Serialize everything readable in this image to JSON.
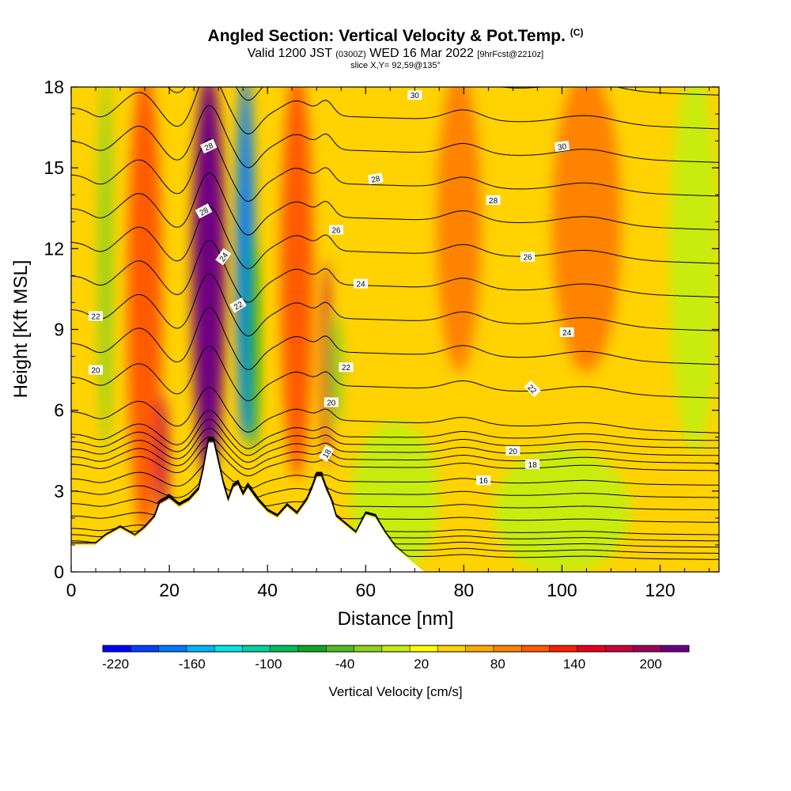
{
  "title": {
    "main": "Angled Section: Vertical Velocity & Pot.Temp.",
    "units": "(C)",
    "valid_prefix": "Valid 1200 JST",
    "valid_utc": "(0300Z)",
    "valid_date": "WED 16 Mar 2022",
    "forecast": "[9hrFcst@2210z]",
    "slice": "slice X,Y= 92,59@135°"
  },
  "colors": {
    "palette": [
      "#0000ff",
      "#0040ff",
      "#0078ff",
      "#00b4ff",
      "#00e6e6",
      "#00d2a0",
      "#00be5a",
      "#10a820",
      "#50be20",
      "#8cd21e",
      "#c8ec10",
      "#ffff00",
      "#ffd200",
      "#ffaa00",
      "#ff8200",
      "#ff5a00",
      "#ff1e00",
      "#e6001e",
      "#c8003c",
      "#a0005a",
      "#6e0082"
    ],
    "terrain": "#ffffff",
    "contour": "#000000"
  },
  "chart_data": {
    "type": "heatmap",
    "xlabel": "Distance [nm]",
    "ylabel": "Height [Kft MSL]",
    "xlim": [
      0,
      132
    ],
    "ylim": [
      0,
      18
    ],
    "x_ticks": [
      0,
      20,
      40,
      60,
      80,
      100,
      120
    ],
    "y_ticks": [
      0,
      3,
      6,
      9,
      12,
      15,
      18
    ],
    "colorbar": {
      "label": "Vertical Velocity [cm/s]",
      "ticks": [
        -220,
        -160,
        -100,
        -40,
        20,
        80,
        140,
        200
      ],
      "min": -230,
      "max": 230,
      "step": 20
    },
    "background_velocity": 10,
    "velocity_bands": [
      {
        "x": 7,
        "width": 1.3,
        "bottom": 5,
        "top": 18,
        "value": -40
      },
      {
        "x": 15,
        "width": 3.5,
        "bottom": 2,
        "top": 18,
        "value": 80
      },
      {
        "x": 18.5,
        "width": 1.2,
        "bottom": 2.5,
        "top": 6,
        "value": 140
      },
      {
        "x": 28,
        "width": 3.3,
        "bottom": 4,
        "top": 18,
        "value": 180
      },
      {
        "x": 35.5,
        "width": 1.8,
        "bottom": 5.5,
        "top": 18,
        "value": -180
      },
      {
        "x": 37,
        "width": 1.2,
        "bottom": 5,
        "top": 12,
        "value": -90
      },
      {
        "x": 46,
        "width": 3.3,
        "bottom": 4,
        "top": 18,
        "value": 80
      },
      {
        "x": 52,
        "width": 0.8,
        "bottom": 4.5,
        "top": 11,
        "value": 140
      },
      {
        "x": 54,
        "width": 1.2,
        "bottom": 6,
        "top": 9,
        "value": -40
      },
      {
        "x": 79,
        "width": 4.5,
        "bottom": 8,
        "top": 18,
        "value": 60
      },
      {
        "x": 105,
        "width": 7,
        "bottom": 8,
        "top": 18,
        "value": 60
      },
      {
        "x": 66,
        "width": 9,
        "bottom": 0.5,
        "top": 5,
        "value": -30
      },
      {
        "x": 100,
        "width": 14,
        "bottom": 0.5,
        "top": 4,
        "value": -30
      },
      {
        "x": 121,
        "width": 2,
        "bottom": 0,
        "top": 4,
        "value": 20
      },
      {
        "x": 127,
        "width": 5,
        "bottom": 5,
        "top": 18,
        "value": -30
      }
    ],
    "terrain_profile": {
      "x": [
        0,
        5,
        7,
        10,
        13,
        15,
        17,
        18,
        20,
        22,
        24,
        26,
        27,
        28,
        29,
        30,
        31,
        32,
        33,
        34,
        35,
        36,
        38,
        40,
        42,
        44,
        46,
        48,
        49,
        50,
        51,
        52,
        53,
        54,
        56,
        58,
        60,
        62,
        64,
        66,
        68,
        70,
        72,
        132
      ],
      "height": [
        1.0,
        1.0,
        1.3,
        1.6,
        1.3,
        1.6,
        2.0,
        2.5,
        2.7,
        2.4,
        2.6,
        3.0,
        3.8,
        4.8,
        4.8,
        4.0,
        3.2,
        2.6,
        3.1,
        3.2,
        2.8,
        3.1,
        2.6,
        2.2,
        2.0,
        2.4,
        2.1,
        2.6,
        3.0,
        3.5,
        3.5,
        3.0,
        2.6,
        2.0,
        1.7,
        1.4,
        2.1,
        2.0,
        1.4,
        0.9,
        0.6,
        0.3,
        0.0,
        0.0
      ]
    },
    "potential_temperature": {
      "levels": [
        2,
        3,
        4,
        5,
        6,
        8,
        10,
        12,
        14,
        16,
        17,
        18,
        19,
        20,
        21,
        22,
        23,
        24,
        25,
        26,
        27,
        28,
        29,
        30,
        31
      ],
      "labels": [
        {
          "text": "30",
          "x": 70.0,
          "y": 17.7,
          "angle": 0
        },
        {
          "text": "30",
          "x": 100.0,
          "y": 15.8,
          "angle": -8
        },
        {
          "text": "28",
          "x": 28.0,
          "y": 15.8,
          "angle": -25
        },
        {
          "text": "28",
          "x": 62.0,
          "y": 14.6,
          "angle": -10
        },
        {
          "text": "28",
          "x": 27.0,
          "y": 13.4,
          "angle": -28
        },
        {
          "text": "28",
          "x": 86.0,
          "y": 13.8,
          "angle": 0
        },
        {
          "text": "26",
          "x": 54.0,
          "y": 12.7,
          "angle": 0
        },
        {
          "text": "26",
          "x": 93.0,
          "y": 11.7,
          "angle": 0
        },
        {
          "text": "24",
          "x": 31.0,
          "y": 11.7,
          "angle": -55
        },
        {
          "text": "24",
          "x": 59.0,
          "y": 10.7,
          "angle": 0
        },
        {
          "text": "24",
          "x": 101.0,
          "y": 8.9,
          "angle": 0
        },
        {
          "text": "22",
          "x": 5.0,
          "y": 9.5,
          "angle": 0
        },
        {
          "text": "22",
          "x": 34.0,
          "y": 9.9,
          "angle": -30
        },
        {
          "text": "22",
          "x": 56.0,
          "y": 7.6,
          "angle": 0
        },
        {
          "text": "22",
          "x": 94.0,
          "y": 6.8,
          "angle": 45
        },
        {
          "text": "20",
          "x": 5.0,
          "y": 7.5,
          "angle": 0
        },
        {
          "text": "20",
          "x": 53.0,
          "y": 6.3,
          "angle": 0
        },
        {
          "text": "20",
          "x": 90.0,
          "y": 4.5,
          "angle": 0
        },
        {
          "text": "18",
          "x": 52.0,
          "y": 4.4,
          "angle": -60
        },
        {
          "text": "18",
          "x": 94.0,
          "y": 4.0,
          "angle": 0
        },
        {
          "text": "16",
          "x": 84.0,
          "y": 3.4,
          "angle": 0
        }
      ]
    }
  }
}
